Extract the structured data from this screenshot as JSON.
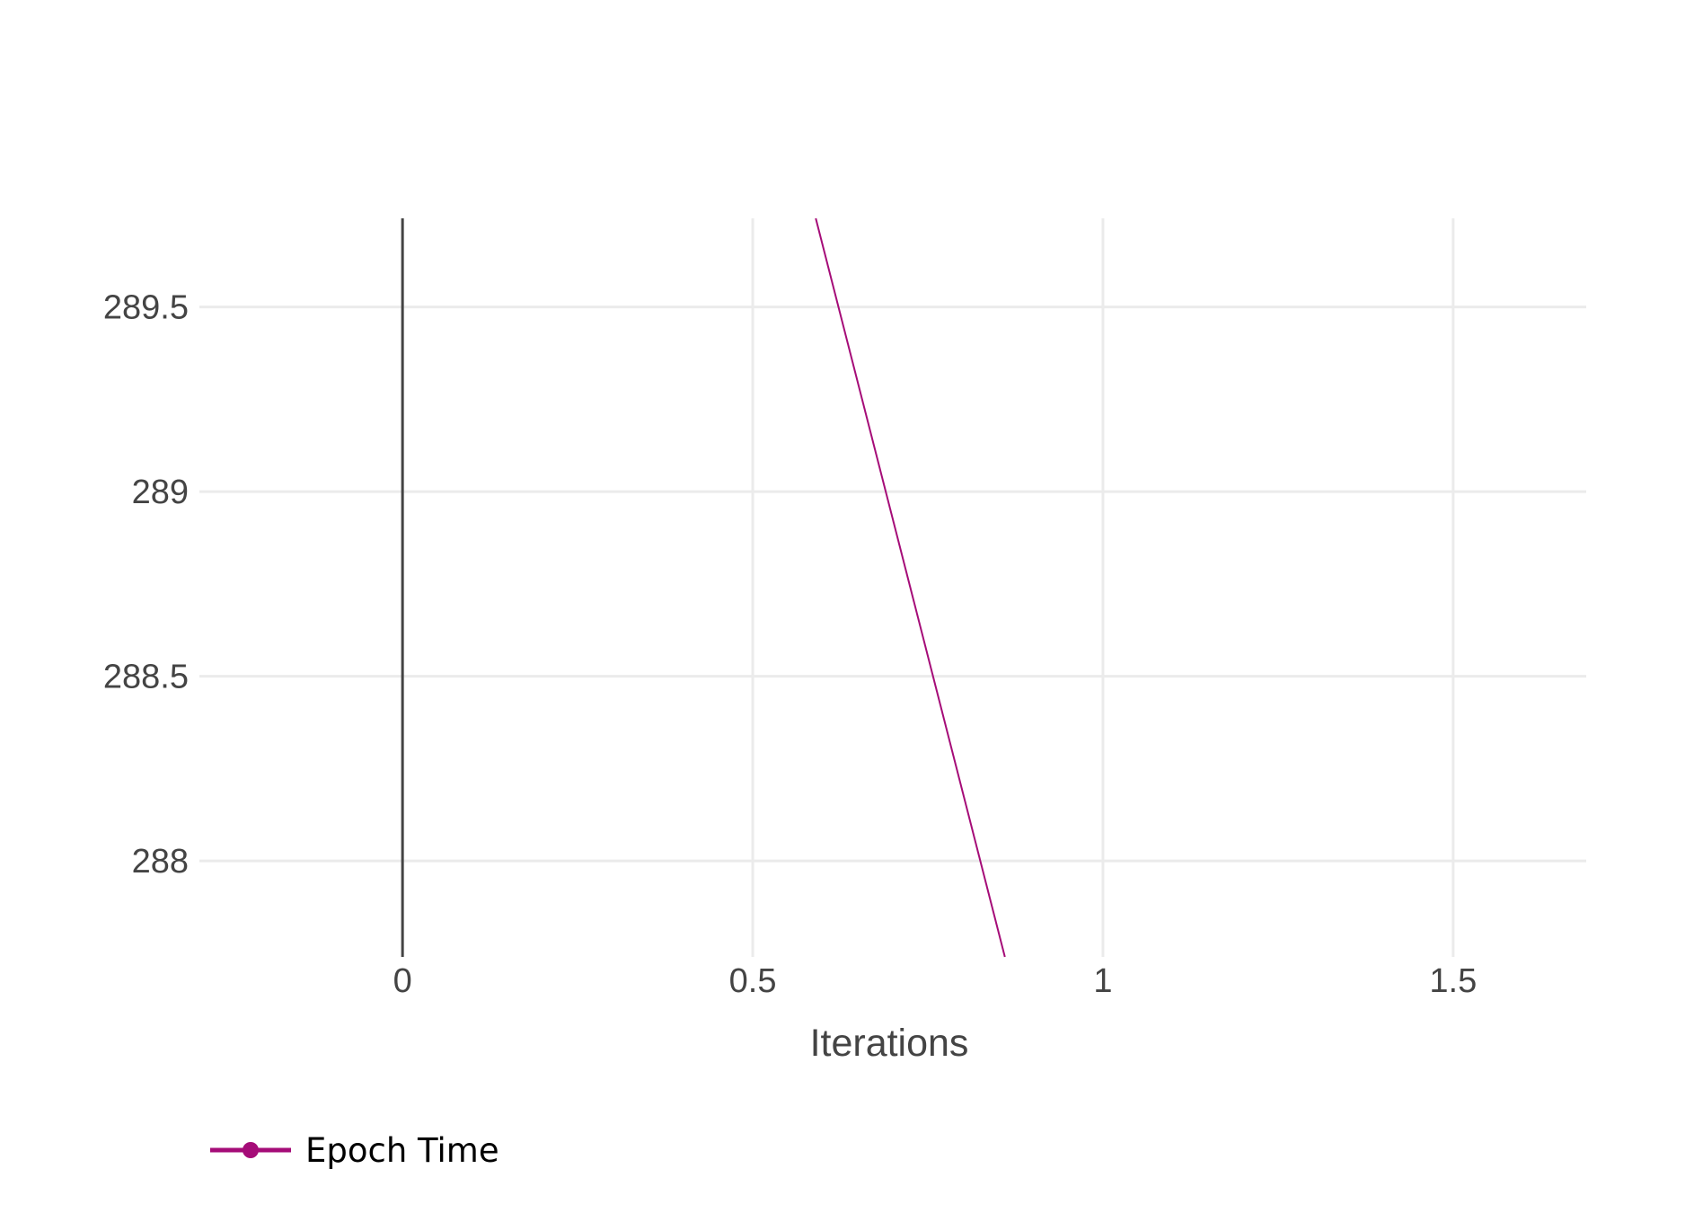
{
  "chart_data": {
    "type": "line",
    "title": "",
    "xlabel": "Iterations",
    "ylabel": "",
    "xlim": [
      -0.29,
      1.69
    ],
    "ylim": [
      287.74,
      289.74
    ],
    "x_ticks": [
      0,
      0.5,
      1,
      1.5
    ],
    "x_tick_labels": [
      "0",
      "0.5",
      "1",
      "1.5"
    ],
    "y_ticks": [
      288,
      288.5,
      289,
      289.5
    ],
    "y_tick_labels": [
      "288",
      "288.5",
      "289",
      "289.5"
    ],
    "grid": true,
    "legend_position": "bottom-left",
    "series": [
      {
        "name": "Epoch Time",
        "color": "#a50c78",
        "x": [
          0.59,
          0.86
        ],
        "y": [
          289.74,
          287.74
        ]
      }
    ]
  },
  "colors": {
    "grid": "#ebebeb",
    "zero_line": "#444444",
    "text": "#444444"
  }
}
